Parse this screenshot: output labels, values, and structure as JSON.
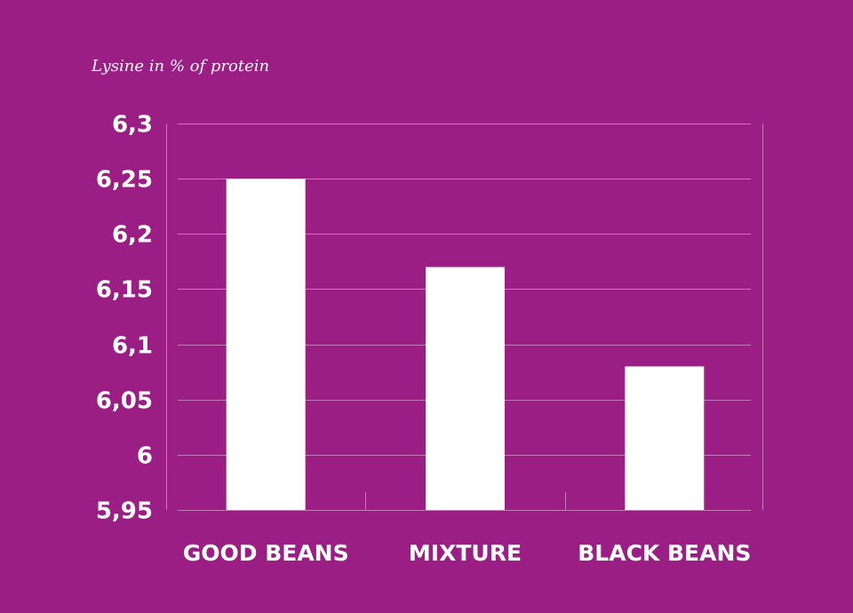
{
  "chart_data": {
    "type": "bar",
    "title": "",
    "xlabel": "",
    "ylabel": "Lysine in % of protein",
    "categories": [
      "GOOD BEANS",
      "MIXTURE",
      "BLACK BEANS"
    ],
    "values": [
      6.25,
      6.17,
      6.08
    ],
    "ylim": [
      5.95,
      6.3
    ],
    "yticks": [
      5.95,
      6,
      6.05,
      6.1,
      6.15,
      6.2,
      6.25,
      6.3
    ],
    "ytick_labels": [
      "5,95",
      "6",
      "6,05",
      "6,1",
      "6,15",
      "6,2",
      "6,25",
      "6,3"
    ],
    "grid": true,
    "colors": {
      "background": "#9a1e84",
      "bar": "#ffffff",
      "grid": "#c77ab8",
      "text": "#ffffff"
    }
  }
}
